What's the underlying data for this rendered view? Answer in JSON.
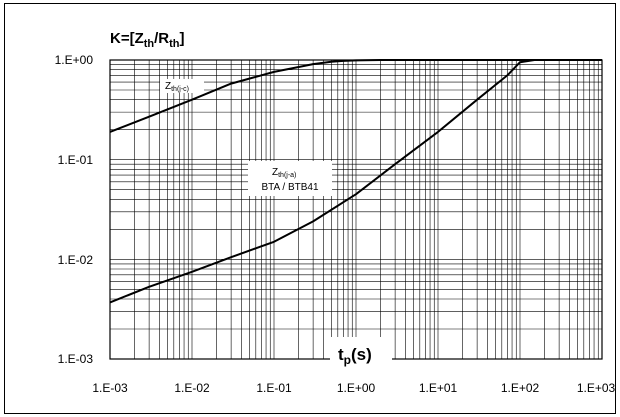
{
  "chart_data": {
    "type": "line",
    "title": "K=[Zth/Rth]",
    "title_parts": {
      "base": "K=[Z",
      "sub1": "th",
      "mid": "/R",
      "sub2": "th",
      "end": "]"
    },
    "xlabel": "tp(s)",
    "xlabel_parts": {
      "base": "t",
      "sub": "p",
      "end": "(s)"
    },
    "ylabel": "",
    "x_scale": "log",
    "y_scale": "log",
    "xlim": [
      0.001,
      1000
    ],
    "ylim": [
      0.001,
      1
    ],
    "grid": true,
    "x_tick_labels": [
      "1.E-03",
      "1.E-02",
      "1.E-01",
      "1.E+00",
      "1.E+01",
      "1.E+02",
      "1.E+03"
    ],
    "y_tick_labels": [
      "1.E+00",
      "1.E-01",
      "1.E-02",
      "1.E-03"
    ],
    "series": [
      {
        "name": "Zth(j-c)",
        "label_parts": {
          "base": "Z",
          "sub": "th(j-c)"
        },
        "x": [
          0.001,
          0.003,
          0.01,
          0.03,
          0.1,
          0.2,
          0.3,
          0.5,
          0.7,
          1,
          2,
          5,
          10,
          100,
          1000
        ],
        "y": [
          0.19,
          0.27,
          0.4,
          0.58,
          0.76,
          0.85,
          0.91,
          0.96,
          0.98,
          0.99,
          1.0,
          1.0,
          1.0,
          1.0,
          1.0
        ]
      },
      {
        "name": "Zth(j-a) BTA / BTB41",
        "label_parts": {
          "base": "Z",
          "sub": "th(j-a)",
          "line2": "BTA / BTB41"
        },
        "x": [
          0.001,
          0.003,
          0.01,
          0.03,
          0.1,
          0.3,
          1,
          3,
          10,
          30,
          70,
          100,
          150,
          200,
          1000
        ],
        "y": [
          0.0037,
          0.0053,
          0.0075,
          0.0105,
          0.015,
          0.024,
          0.045,
          0.09,
          0.19,
          0.4,
          0.7,
          0.95,
          1.0,
          1.0,
          1.0
        ]
      }
    ]
  }
}
